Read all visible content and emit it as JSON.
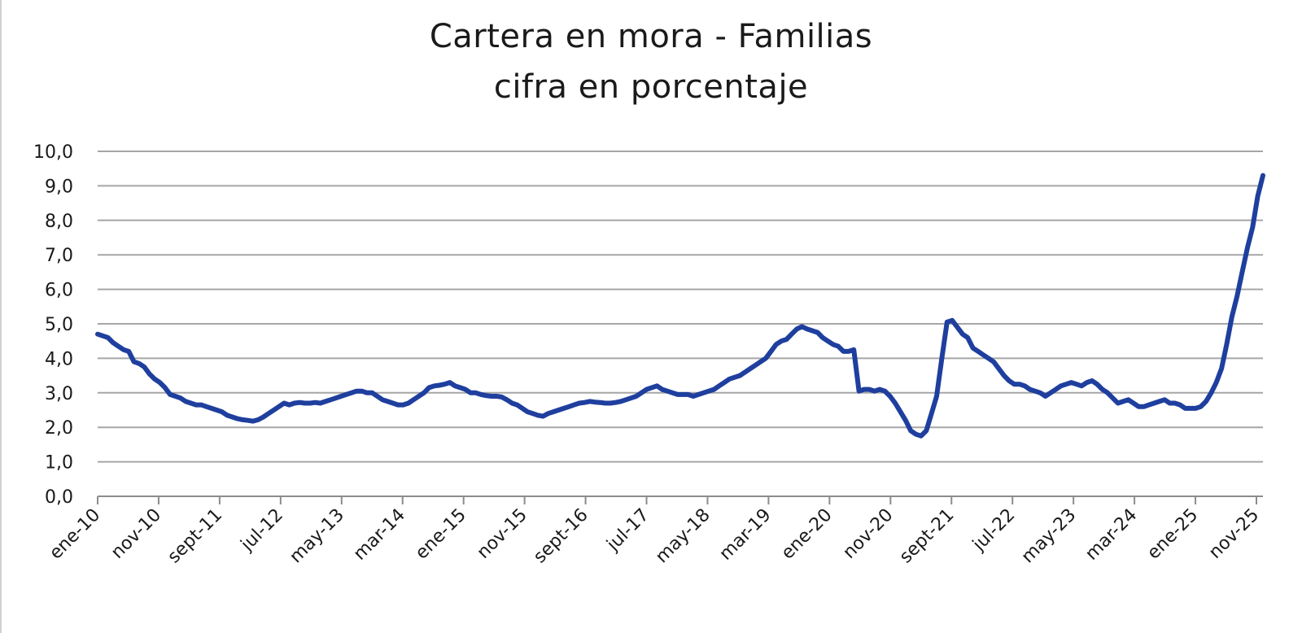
{
  "chart_data": {
    "type": "line",
    "title": "Cartera en mora - Familias",
    "subtitle": "cifra en porcentaje",
    "xlabel": "",
    "ylabel": "",
    "ylim": [
      0,
      10
    ],
    "yticks": [
      "0,0",
      "1,0",
      "2,0",
      "3,0",
      "4,0",
      "5,0",
      "6,0",
      "7,0",
      "8,0",
      "9,0",
      "10,0"
    ],
    "xtick_labels": [
      "ene-10",
      "nov-10",
      "sept-11",
      "jul-12",
      "may-13",
      "mar-14",
      "ene-15",
      "nov-15",
      "sept-16",
      "jul-17",
      "may-18",
      "mar-19",
      "ene-20",
      "nov-20",
      "sept-21",
      "jul-22",
      "may-23",
      "mar-24",
      "ene-25",
      "nov-25"
    ],
    "grid": "horizontal",
    "legend": "none",
    "line_color": "#1f3f9e",
    "series": [
      {
        "values": [
          4.7,
          4.65,
          4.6,
          4.45,
          4.35,
          4.25,
          4.2,
          3.9,
          3.85,
          3.75,
          3.55,
          3.4,
          3.3,
          3.15,
          2.95,
          2.9,
          2.85,
          2.75,
          2.7,
          2.65,
          2.65,
          2.6,
          2.55,
          2.5,
          2.45,
          2.35,
          2.3,
          2.25,
          2.22,
          2.2,
          2.18,
          2.22,
          2.3,
          2.4,
          2.5,
          2.6,
          2.7,
          2.65,
          2.7,
          2.72,
          2.7,
          2.7,
          2.72,
          2.7,
          2.75,
          2.8,
          2.85,
          2.9,
          2.95,
          3.0,
          3.05,
          3.05,
          3.0,
          3.0,
          2.9,
          2.8,
          2.75,
          2.7,
          2.65,
          2.65,
          2.7,
          2.8,
          2.9,
          3.0,
          3.15,
          3.2,
          3.22,
          3.25,
          3.3,
          3.2,
          3.15,
          3.1,
          3.0,
          3.0,
          2.95,
          2.92,
          2.9,
          2.9,
          2.88,
          2.8,
          2.7,
          2.65,
          2.55,
          2.45,
          2.4,
          2.35,
          2.32,
          2.4,
          2.45,
          2.5,
          2.55,
          2.6,
          2.65,
          2.7,
          2.72,
          2.75,
          2.73,
          2.72,
          2.7,
          2.7,
          2.72,
          2.75,
          2.8,
          2.85,
          2.9,
          3.0,
          3.1,
          3.15,
          3.2,
          3.1,
          3.05,
          3.0,
          2.95,
          2.95,
          2.95,
          2.9,
          2.95,
          3.0,
          3.05,
          3.1,
          3.2,
          3.3,
          3.4,
          3.45,
          3.5,
          3.6,
          3.7,
          3.8,
          3.9,
          4.0,
          4.2,
          4.4,
          4.5,
          4.55,
          4.7,
          4.85,
          4.92,
          4.85,
          4.8,
          4.75,
          4.6,
          4.5,
          4.4,
          4.35,
          4.2,
          4.2,
          4.25,
          3.05,
          3.1,
          3.1,
          3.05,
          3.1,
          3.05,
          2.9,
          2.7,
          2.45,
          2.2,
          1.9,
          1.8,
          1.75,
          1.9,
          2.4,
          2.9,
          4.0,
          5.05,
          5.1,
          4.9,
          4.7,
          4.6,
          4.3,
          4.2,
          4.1,
          4.0,
          3.9,
          3.7,
          3.5,
          3.35,
          3.25,
          3.25,
          3.2,
          3.1,
          3.05,
          3.0,
          2.9,
          3.0,
          3.1,
          3.2,
          3.25,
          3.3,
          3.25,
          3.2,
          3.3,
          3.35,
          3.25,
          3.1,
          3.0,
          2.85,
          2.7,
          2.75,
          2.8,
          2.7,
          2.6,
          2.6,
          2.65,
          2.7,
          2.75,
          2.8,
          2.7,
          2.7,
          2.65,
          2.55,
          2.55,
          2.55,
          2.6,
          2.75,
          3.0,
          3.3,
          3.7,
          4.4,
          5.2,
          5.8,
          6.5,
          7.2,
          7.8,
          8.7,
          9.3
        ]
      }
    ]
  }
}
